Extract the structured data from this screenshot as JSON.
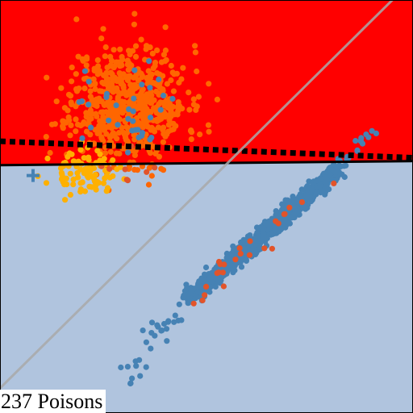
{
  "chart_data": {
    "type": "scatter",
    "title": "",
    "xlabel": "",
    "ylabel": "",
    "xlim": [
      0,
      100
    ],
    "ylim": [
      0,
      100
    ],
    "grid": false,
    "legend": "none",
    "annotation": "237 Poisons",
    "regions": [
      {
        "name": "",
        "color": "#ff0000",
        "boundary": {
          "x": [
            0,
            100
          ],
          "y": [
            60.0,
            61.0
          ]
        },
        "side": "above"
      },
      {
        "name": "",
        "color": "#b0c4de",
        "side": "below"
      }
    ],
    "lines": [
      {
        "role": "decision-boundary",
        "style": "solid",
        "color": "#000000",
        "x": [
          0,
          100
        ],
        "y": [
          60.0,
          61.0
        ]
      },
      {
        "role": "clean-boundary",
        "style": "dotted",
        "color": "#000000",
        "x": [
          0,
          100
        ],
        "y": [
          65.8,
          61.8
        ]
      },
      {
        "role": "diagonal",
        "style": "solid",
        "color": "#a9a9a9",
        "x": [
          0,
          95
        ],
        "y": [
          6,
          100
        ]
      }
    ],
    "series": [
      {
        "name": "",
        "color": "#ff6600",
        "kind": "cluster",
        "center": [
          31,
          75
        ],
        "spread": [
          7,
          7
        ],
        "count": 620,
        "seed": 11
      },
      {
        "name": "",
        "color": "#ffb000",
        "kind": "cluster",
        "center": [
          20,
          58
        ],
        "spread": [
          4,
          2.5
        ],
        "count": 90,
        "seed": 23
      },
      {
        "name": "",
        "color": "#4682b4",
        "kind": "diagonal-band",
        "from": [
          45,
          27
        ],
        "to": [
          82,
          59
        ],
        "width": 1.0,
        "count": 900,
        "seed": 37
      },
      {
        "name": "",
        "color": "#4682b4",
        "kind": "tail",
        "from": [
          30,
          8
        ],
        "to": [
          45,
          27
        ],
        "width": 1.5,
        "count": 30,
        "seed": 41
      },
      {
        "name": "",
        "color": "#4682b4",
        "kind": "tail",
        "from": [
          82,
          59
        ],
        "to": [
          91,
          70
        ],
        "width": 0.8,
        "count": 20,
        "seed": 43
      },
      {
        "name": "",
        "color": "#e2542a",
        "kind": "diagonal-band",
        "from": [
          46,
          27
        ],
        "to": [
          80,
          57
        ],
        "width": 1.5,
        "count": 25,
        "seed": 53
      },
      {
        "name": "",
        "color": "#e2542a",
        "kind": "cluster",
        "center": [
          31,
          57
        ],
        "spread": [
          4,
          2
        ],
        "count": 8,
        "seed": 59
      },
      {
        "name": "",
        "color": "#4682b4",
        "kind": "cluster",
        "center": [
          30,
          74
        ],
        "spread": [
          7,
          6
        ],
        "count": 35,
        "seed": 61
      }
    ],
    "markers": [
      {
        "shape": "plus",
        "color": "#4682b4",
        "x": 8,
        "y": 57.5
      }
    ]
  }
}
